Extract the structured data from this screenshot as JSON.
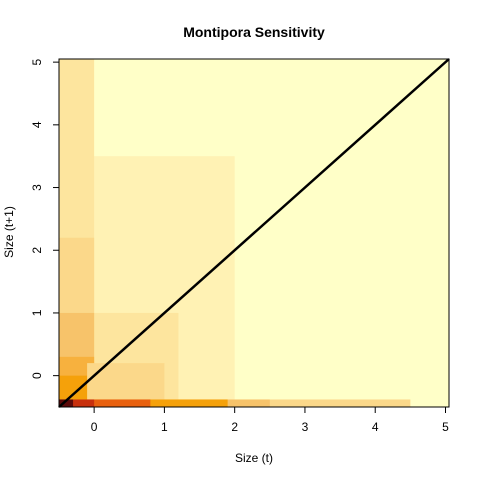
{
  "chart_data": {
    "type": "heatmap",
    "title": "Montipora Sensitivity",
    "xlabel": "Size (t)",
    "ylabel": "Size (t+1)",
    "xlim": [
      -0.5,
      5.05
    ],
    "ylim": [
      -0.5,
      5.05
    ],
    "x_ticks": [
      "0",
      "1",
      "2",
      "3",
      "4",
      "5"
    ],
    "y_ticks": [
      "0",
      "1",
      "2",
      "3",
      "4",
      "5"
    ],
    "grid": false,
    "legend": "none",
    "palette": [
      "#ffffc8",
      "#fff2b4",
      "#fde59e",
      "#fbd88a",
      "#f7c36a",
      "#f7b13e",
      "#f5a10a",
      "#e8600e",
      "#c8300d",
      "#5c0a0a"
    ],
    "diagonal_line": {
      "from": [
        -0.5,
        -0.5
      ],
      "to": [
        5.05,
        5.05
      ],
      "color": "#000000"
    },
    "regions": [
      {
        "x": [
          -0.5,
          5.05
        ],
        "y": [
          -0.5,
          5.05
        ],
        "level": 0
      },
      {
        "x": [
          -0.5,
          2.0
        ],
        "y": [
          -0.5,
          3.5
        ],
        "level": 1
      },
      {
        "x": [
          -0.5,
          0.0
        ],
        "y": [
          -0.5,
          5.05
        ],
        "level": 2
      },
      {
        "x": [
          -0.5,
          1.2
        ],
        "y": [
          -0.5,
          1.0
        ],
        "level": 2
      },
      {
        "x": [
          -0.5,
          0.0
        ],
        "y": [
          -0.5,
          2.2
        ],
        "level": 3
      },
      {
        "x": [
          -0.5,
          0.0
        ],
        "y": [
          -0.5,
          1.0
        ],
        "level": 4
      },
      {
        "x": [
          -0.5,
          0.0
        ],
        "y": [
          -0.5,
          0.3
        ],
        "level": 5
      },
      {
        "x": [
          -0.5,
          0.0
        ],
        "y": [
          -0.5,
          0.0
        ],
        "level": 6
      },
      {
        "x": [
          -0.1,
          1.0
        ],
        "y": [
          -0.5,
          0.2
        ],
        "level": 3
      },
      {
        "x": [
          -0.5,
          4.5
        ],
        "y": [
          -0.5,
          -0.38
        ],
        "level": 3
      },
      {
        "x": [
          -0.5,
          2.5
        ],
        "y": [
          -0.5,
          -0.38
        ],
        "level": 4
      },
      {
        "x": [
          -0.5,
          1.9
        ],
        "y": [
          -0.5,
          -0.38
        ],
        "level": 6
      },
      {
        "x": [
          -0.5,
          0.8
        ],
        "y": [
          -0.5,
          -0.38
        ],
        "level": 7
      },
      {
        "x": [
          -0.5,
          0.0
        ],
        "y": [
          -0.5,
          -0.38
        ],
        "level": 8
      },
      {
        "x": [
          -0.5,
          -0.3
        ],
        "y": [
          -0.5,
          -0.38
        ],
        "level": 9
      }
    ]
  }
}
